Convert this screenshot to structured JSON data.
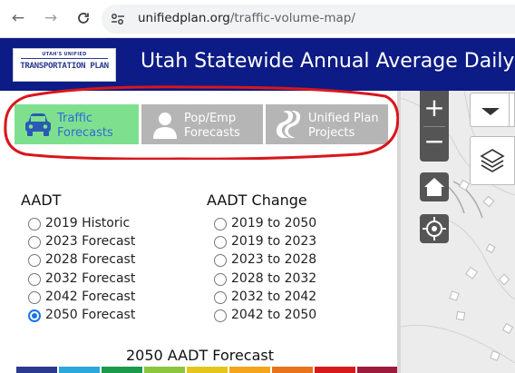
{
  "browser": {
    "back_icon": "arrow-left-icon",
    "forward_icon": "arrow-right-icon",
    "reload_icon": "reload-icon",
    "url_domain": "unifiedplan.org",
    "url_path": "/traffic-volume-map/"
  },
  "header": {
    "logo_top": "UTAH'S UNIFIED",
    "logo_main": "TRANSPORTATION PLAN",
    "title": "Utah Statewide Annual Average Daily"
  },
  "tabs": [
    {
      "line1": "Traffic",
      "line2": "Forecasts",
      "icon": "car-icon",
      "active": true
    },
    {
      "line1": "Pop/Emp",
      "line2": "Forecasts",
      "icon": "person-icon",
      "active": false
    },
    {
      "line1": "Unified Plan",
      "line2": "Projects",
      "icon": "road-icon",
      "active": false
    }
  ],
  "aadt": {
    "title": "AADT",
    "options": [
      "2019 Historic",
      "2023 Forecast",
      "2028 Forecast",
      "2032 Forecast",
      "2042 Forecast",
      "2050 Forecast"
    ],
    "selected": "2050 Forecast"
  },
  "aadt_change": {
    "title": "AADT Change",
    "options": [
      "2019 to 2050",
      "2019 to 2023",
      "2023 to 2028",
      "2028 to 2032",
      "2032 to 2042",
      "2042 to 2050"
    ],
    "selected": null
  },
  "legend": {
    "title": "2050 AADT Forecast",
    "colors": [
      "#2b3a8e",
      "#2aa8dc",
      "#1a9a4a",
      "#8cc63f",
      "#e6c51a",
      "#f4a51c",
      "#e8731a",
      "#d7191c",
      "#9e1a3c"
    ]
  },
  "map": {
    "zoom_in_icon": "plus-icon",
    "zoom_out_icon": "minus-icon",
    "home_icon": "home-icon",
    "locate_icon": "locate-icon",
    "dropdown_icon": "chevron-down-icon",
    "layers_icon": "layers-icon"
  },
  "colors": {
    "header_bg": "#0c1b85",
    "active_tab": "#7ee08f",
    "inactive_tab": "#b5b5b5",
    "annotation": "#d9161c"
  }
}
